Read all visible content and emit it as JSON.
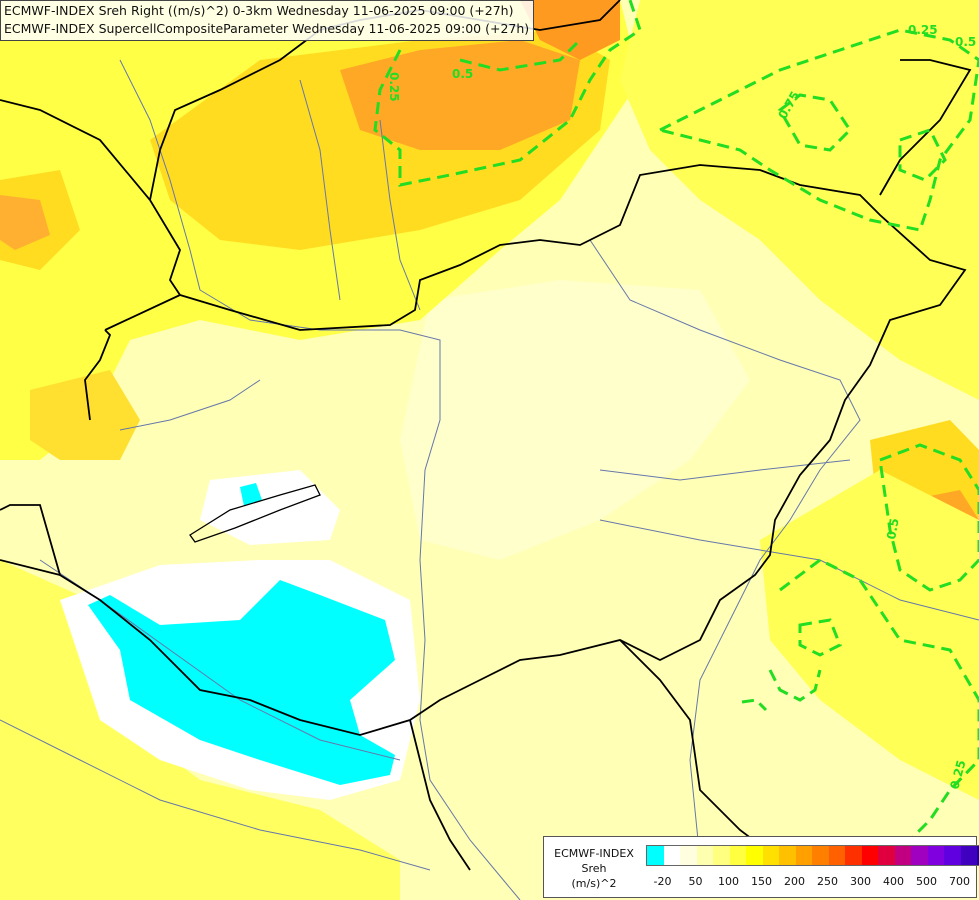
{
  "header": {
    "line1": "ECMWF-INDEX Sreh Right ((m/s)^2) 0-3km Wednesday 11-06-2025 09:00 (+27h)",
    "line2": "ECMWF-INDEX SupercellCompositeParameter Wednesday 11-06-2025 09:00 (+27h)"
  },
  "contours": {
    "color": "#22dd22",
    "labels": [
      "0.25",
      "0.5",
      "0.75",
      "0.25",
      "0.5",
      "0.5",
      "0.25"
    ]
  },
  "legend": {
    "title_lines": [
      "ECMWF-INDEX",
      "Sreh",
      "(m/s)^2"
    ],
    "colors": [
      "#00ffff",
      "#ffffff",
      "#ffffe0",
      "#ffffb0",
      "#ffff80",
      "#ffff40",
      "#ffff00",
      "#ffe000",
      "#ffc000",
      "#ffa000",
      "#ff8000",
      "#ff6000",
      "#ff3000",
      "#ff0000",
      "#e00040",
      "#c00080",
      "#a000c0",
      "#8000e0",
      "#6000e0",
      "#4000c0",
      "#2000a0",
      "#000080"
    ],
    "ticks": [
      "-20",
      "50",
      "100",
      "150",
      "200",
      "250",
      "300",
      "400",
      "500",
      "700"
    ]
  }
}
